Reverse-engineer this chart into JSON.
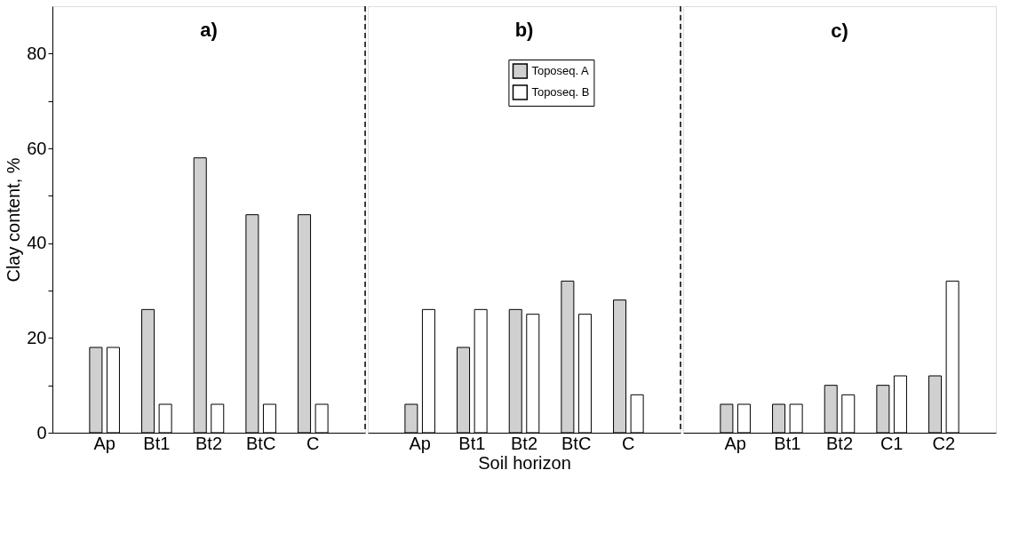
{
  "chart_data": [
    {
      "type": "bar",
      "title": "a)",
      "ylabel": "Clay content, %",
      "categories": [
        "Ap",
        "Bt1",
        "Bt2",
        "BtC",
        "C"
      ],
      "ylim": [
        0,
        90
      ],
      "yticks": [
        0,
        {
          "value": 10,
          "label": null
        },
        20,
        {
          "value": 30,
          "label": null
        },
        40,
        {
          "value": 50,
          "label": null
        },
        60,
        {
          "value": 70,
          "label": null
        },
        80
      ],
      "series": [
        {
          "color": "#d0d0d0",
          "values": [
            18,
            26,
            58,
            46,
            46
          ]
        },
        {
          "color": "#ffffff",
          "values": [
            18,
            6,
            6,
            6,
            6
          ]
        }
      ]
    },
    {
      "type": "bar",
      "title": "b)",
      "xlabel": "Soil horizon",
      "categories": [
        "Ap",
        "Bt1",
        "Bt2",
        "BtC",
        "C"
      ],
      "ylim": [
        0,
        90
      ],
      "tick_labels": "x",
      "legend": "top",
      "series": [
        {
          "name": "Toposeq. A",
          "color": "#d0d0d0",
          "values": [
            6,
            18,
            26,
            32,
            28
          ]
        },
        {
          "name": "Toposeq. B",
          "color": "#ffffff",
          "values": [
            26,
            26,
            25,
            25,
            8
          ]
        }
      ]
    },
    {
      "type": "bar",
      "title": "c)",
      "categories": [
        "Ap",
        "Bt1",
        "Bt2",
        "C1",
        "C2"
      ],
      "ylim": [
        0,
        90
      ],
      "tick_labels": "x",
      "series": [
        {
          "color": "#d0d0d0",
          "values": [
            6,
            6,
            10,
            10,
            12
          ]
        },
        {
          "color": "#ffffff",
          "values": [
            6,
            6,
            8,
            12,
            32
          ]
        }
      ]
    }
  ]
}
